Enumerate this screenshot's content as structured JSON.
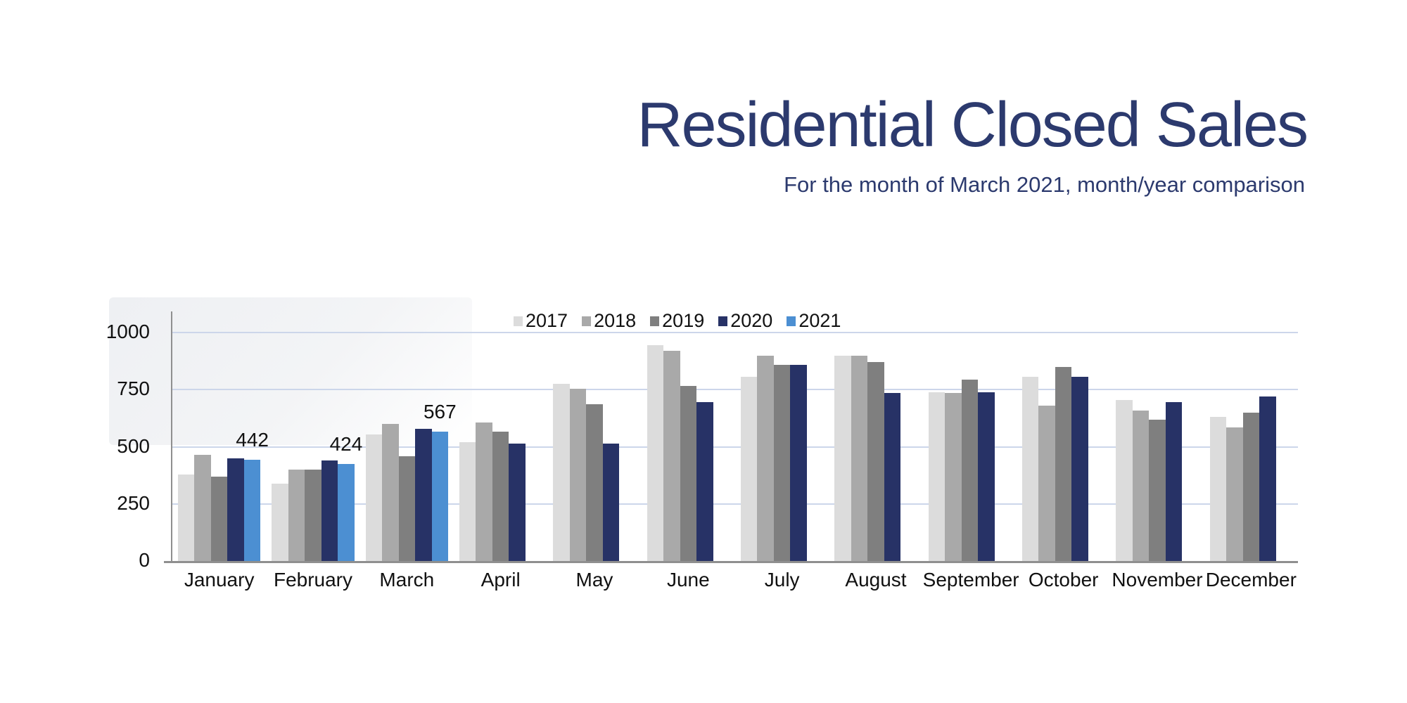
{
  "title": "Residential Closed Sales",
  "subtitle": "For the month of March 2021, month/year comparison",
  "colors": {
    "title_navy": "#2c3a6e",
    "axis_gray": "#8f8f8f",
    "gridline_blue": "#ccd6ea",
    "label_black": "#111111",
    "background": "#ffffff"
  },
  "chart_data": {
    "type": "bar",
    "title": "Residential Closed Sales",
    "subtitle": "For the month of March 2021, month/year comparison",
    "categories": [
      "January",
      "February",
      "March",
      "April",
      "May",
      "June",
      "July",
      "August",
      "September",
      "October",
      "November",
      "December"
    ],
    "series": [
      {
        "name": "2017",
        "color": "#dcdcdc",
        "values": [
          380,
          340,
          555,
          520,
          775,
          945,
          805,
          900,
          740,
          805,
          705,
          630
        ]
      },
      {
        "name": "2018",
        "color": "#a9a9a9",
        "values": [
          465,
          400,
          600,
          605,
          755,
          920,
          900,
          900,
          735,
          680,
          660,
          585
        ]
      },
      {
        "name": "2019",
        "color": "#7f7f7f",
        "values": [
          370,
          400,
          460,
          565,
          685,
          765,
          860,
          870,
          795,
          850,
          620,
          650
        ]
      },
      {
        "name": "2020",
        "color": "#273266",
        "values": [
          450,
          440,
          580,
          515,
          515,
          695,
          860,
          735,
          740,
          805,
          695,
          720
        ]
      },
      {
        "name": "2021",
        "color": "#4c8fd2",
        "values": [
          442,
          424,
          567,
          null,
          null,
          null,
          null,
          null,
          null,
          null,
          null,
          null
        ],
        "show_labels": true
      }
    ],
    "data_labels": [
      "442",
      "424",
      "567"
    ],
    "y_ticks": [
      0,
      250,
      500,
      750,
      1000
    ],
    "ylim": [
      0,
      1092
    ],
    "grid": true,
    "legend_position": "top"
  }
}
